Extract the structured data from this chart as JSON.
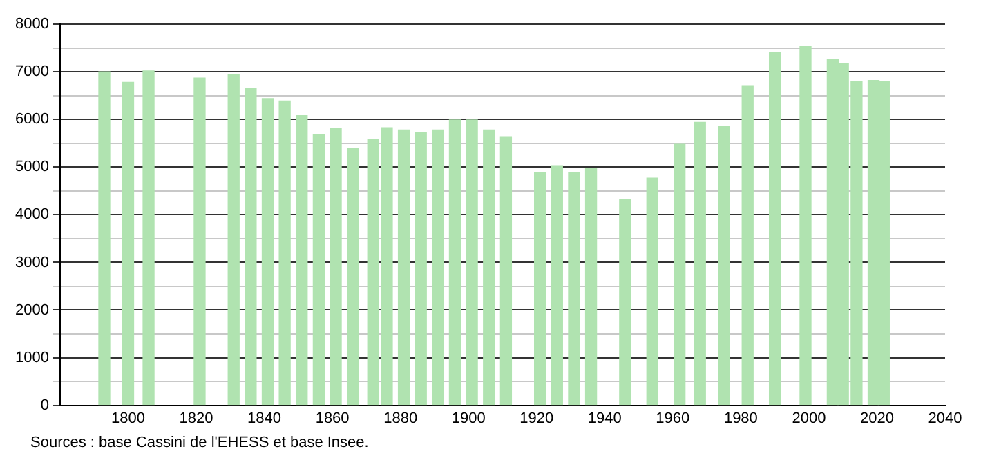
{
  "chart_data": {
    "type": "bar",
    "x": [
      1793,
      1800,
      1806,
      1821,
      1831,
      1836,
      1841,
      1846,
      1851,
      1856,
      1861,
      1866,
      1872,
      1876,
      1881,
      1886,
      1891,
      1896,
      1901,
      1906,
      1911,
      1921,
      1926,
      1931,
      1936,
      1946,
      1954,
      1962,
      1968,
      1975,
      1982,
      1990,
      1999,
      2007,
      2010,
      2014,
      2019,
      2022
    ],
    "values": [
      7000,
      6780,
      7020,
      6870,
      6940,
      6660,
      6440,
      6390,
      6080,
      5690,
      5810,
      5390,
      5580,
      5830,
      5780,
      5720,
      5780,
      5990,
      5990,
      5780,
      5640,
      4890,
      5030,
      4890,
      4980,
      4330,
      4770,
      5480,
      5940,
      5850,
      6710,
      7400,
      7540,
      7260,
      7170,
      6790,
      6820,
      6790
    ],
    "color": "#b0e3b0",
    "xlim": [
      1780,
      2040
    ],
    "xticks": [
      1800,
      1820,
      1840,
      1860,
      1880,
      1900,
      1920,
      1940,
      1960,
      1980,
      2000,
      2020,
      2040
    ],
    "ylim": [
      0,
      8000
    ],
    "yticks": [
      0,
      {
        "value": 500,
        "label": null
      },
      1000,
      {
        "value": 1500,
        "label": null
      },
      2000,
      {
        "value": 2500,
        "label": null
      },
      3000,
      {
        "value": 3500,
        "label": null
      },
      4000,
      {
        "value": 4500,
        "label": null
      },
      5000,
      {
        "value": 5500,
        "label": null
      },
      6000,
      {
        "value": 6500,
        "label": null
      },
      7000,
      {
        "value": 7500,
        "label": null
      },
      8000
    ],
    "grid": "y",
    "annotations": [
      "Sources : base Cassini de l'EHESS et base Insee."
    ]
  }
}
